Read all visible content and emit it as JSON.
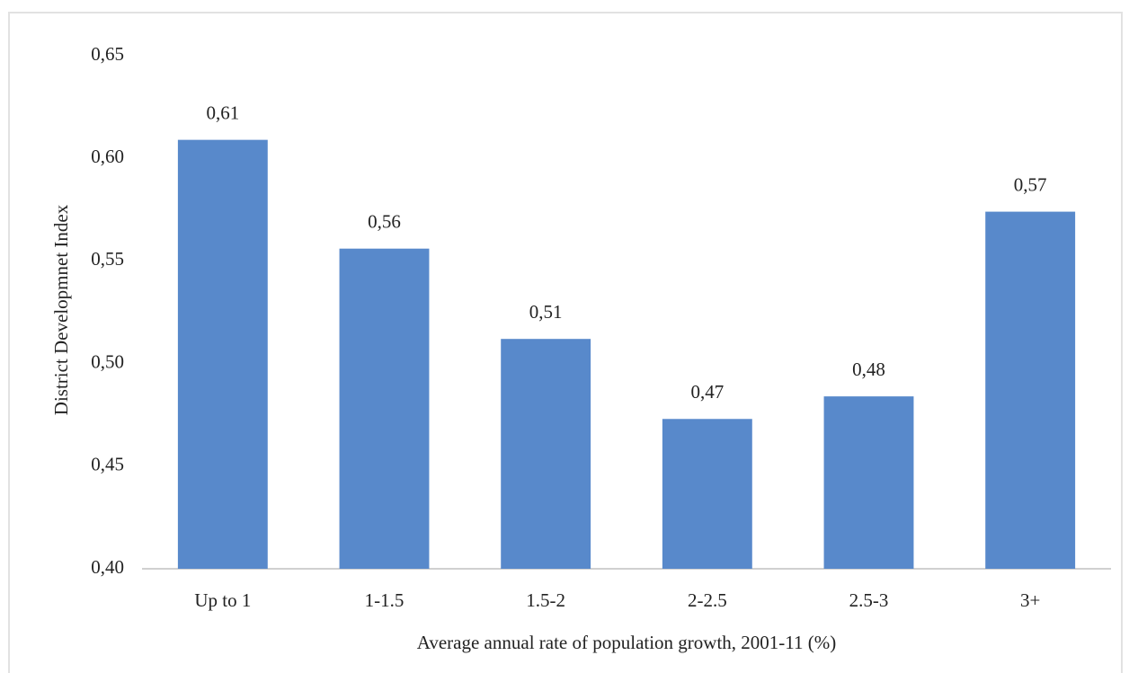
{
  "chart_data": {
    "type": "bar",
    "x_label": "Average annual rate of population growth, 2001-11 (%)",
    "y_label": "District Developmnet Index",
    "categories": [
      "Up to 1",
      "1-1.5",
      "1.5-2",
      "2-2.5",
      "2.5-3",
      "3+"
    ],
    "values": [
      0.609,
      0.556,
      0.512,
      0.473,
      0.484,
      0.574
    ],
    "value_labels": [
      "0,61",
      "0,56",
      "0,51",
      "0,47",
      "0,48",
      "0,57"
    ],
    "color": "#5889cb",
    "ylim": [
      0.4,
      0.65
    ],
    "yticks": [
      {
        "value": 0.4,
        "label": "0,40"
      },
      {
        "value": 0.45,
        "label": "0,45"
      },
      {
        "value": 0.5,
        "label": "0,50"
      },
      {
        "value": 0.55,
        "label": "0,55"
      },
      {
        "value": 0.6,
        "label": "0,60"
      },
      {
        "value": 0.65,
        "label": "0,65"
      }
    ],
    "grid": false
  }
}
